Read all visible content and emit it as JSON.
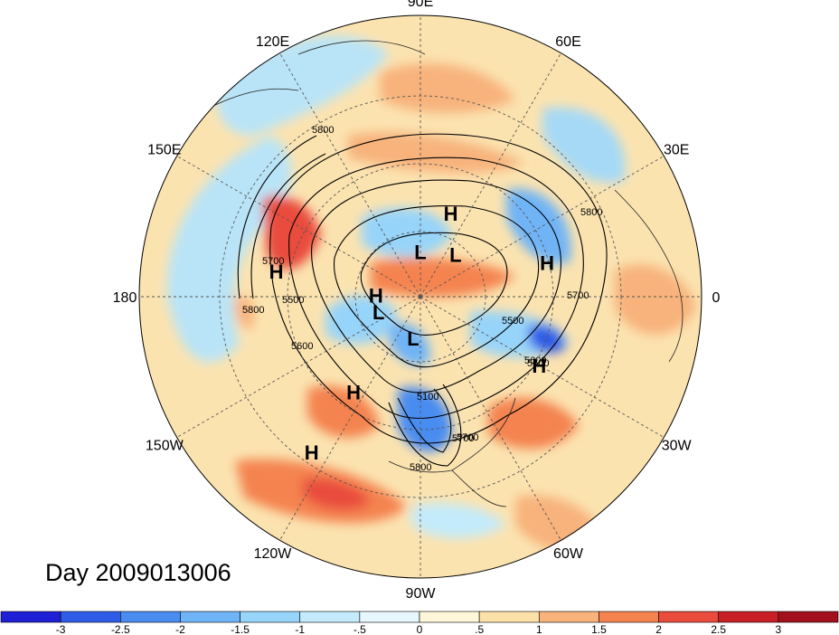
{
  "title": "Day 2009013006",
  "longitude_labels": [
    {
      "text": "90E",
      "angle": -90
    },
    {
      "text": "60E",
      "angle": -60
    },
    {
      "text": "30E",
      "angle": -30
    },
    {
      "text": "0",
      "angle": 0
    },
    {
      "text": "30W",
      "angle": 30
    },
    {
      "text": "60W",
      "angle": 60
    },
    {
      "text": "90W",
      "angle": 90
    },
    {
      "text": "120W",
      "angle": 120
    },
    {
      "text": "150W",
      "angle": 150
    },
    {
      "text": "180",
      "angle": 180
    },
    {
      "text": "150E",
      "angle": 210
    },
    {
      "text": "120E",
      "angle": 240
    }
  ],
  "highs_lows": [
    {
      "text": "H",
      "lon": 70,
      "lat": 55
    },
    {
      "text": "H",
      "lon": 15,
      "lat": 40
    },
    {
      "text": "H",
      "lon": 170,
      "lat": 35
    },
    {
      "text": "H",
      "lon": 178,
      "lat": 72
    },
    {
      "text": "L",
      "lon": 90,
      "lat": 72
    },
    {
      "text": "L",
      "lon": 50,
      "lat": 68
    },
    {
      "text": "L",
      "lon": -160,
      "lat": 72
    },
    {
      "text": "L",
      "lon": -100,
      "lat": 73
    },
    {
      "text": "H",
      "lon": -125,
      "lat": 45
    },
    {
      "text": "H",
      "lon": -30,
      "lat": 38
    },
    {
      "text": "H",
      "lon": -125,
      "lat": 22
    }
  ],
  "contour_labels": [
    "5800",
    "5700",
    "5500",
    "5800",
    "5600",
    "5500",
    "5700",
    "5800",
    "5700",
    "5600",
    "5100",
    "5700",
    "5800",
    "5600"
  ],
  "colorbar": {
    "ticks": [
      "-3",
      "-2.5",
      "-2",
      "-1.5",
      "-1",
      "-.5",
      "0",
      ".5",
      "1",
      "1.5",
      "2",
      "2.5",
      "3"
    ],
    "colors": [
      "#1f1fd6",
      "#2f5ce6",
      "#4a8cf0",
      "#6fb4f6",
      "#97d4f9",
      "#c3ebfb",
      "#e6f7fd",
      "#fdf6d8",
      "#fbe0a8",
      "#f8b27c",
      "#f4834f",
      "#e94b3c",
      "#c81e26",
      "#a1101c"
    ]
  },
  "colors": {
    "ocean_base": "#fcebc4",
    "strong_positive": "#e94b3c",
    "strong_negative": "#2f5ce6"
  }
}
